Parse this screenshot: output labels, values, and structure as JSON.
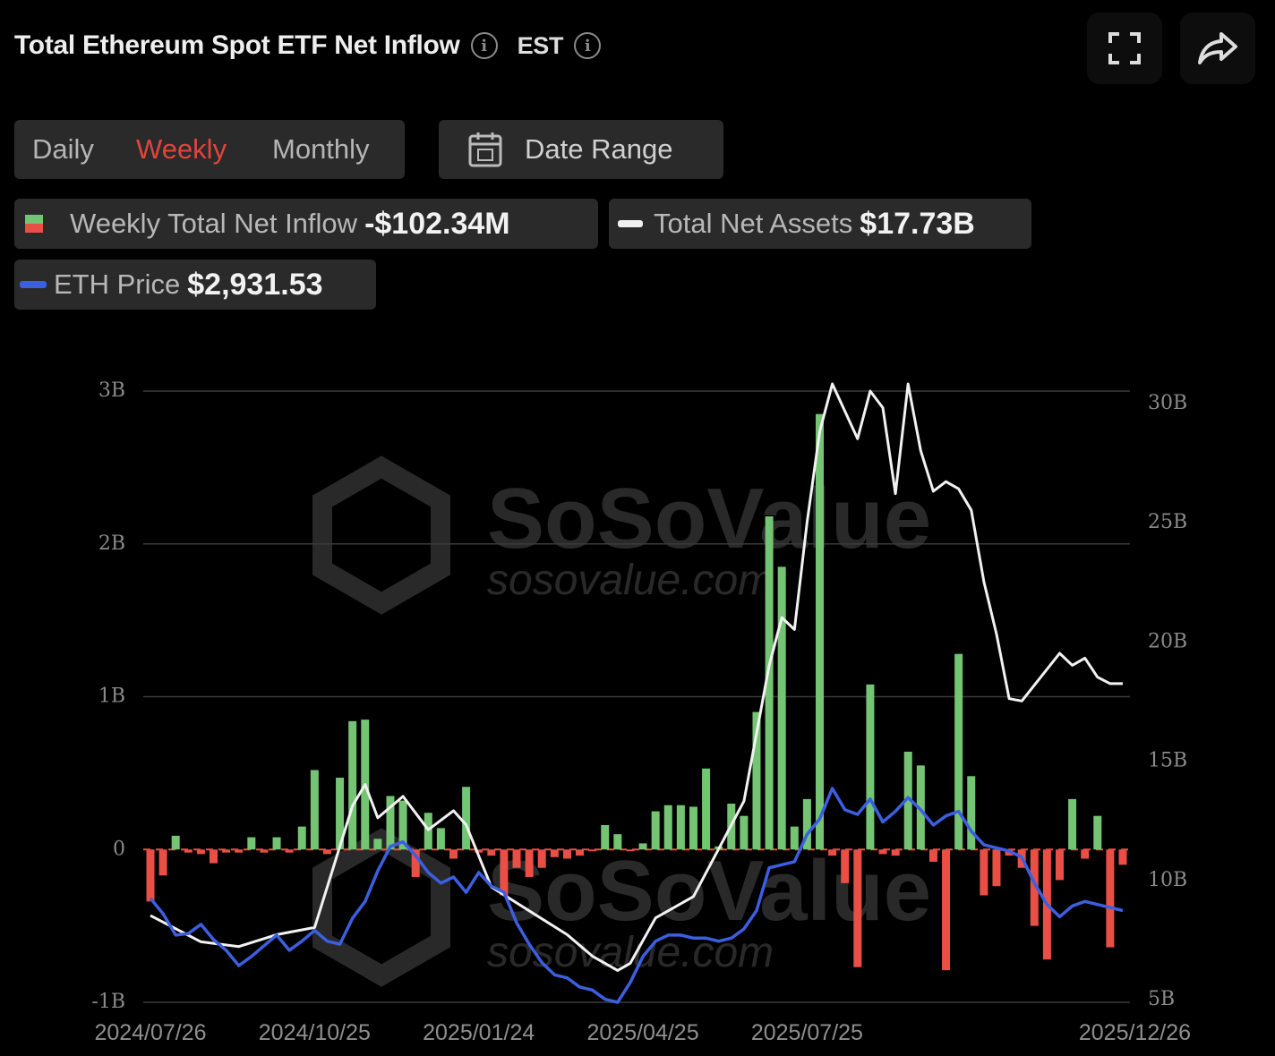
{
  "header": {
    "title": "Total Ethereum Spot ETF Net Inflow",
    "timezone": "EST",
    "info_icon": "info-icon",
    "fullscreen_icon": "fullscreen-icon",
    "share_icon": "share-icon"
  },
  "period_tabs": [
    {
      "label": "Daily",
      "active": false
    },
    {
      "label": "Weekly",
      "active": true
    },
    {
      "label": "Monthly",
      "active": false
    }
  ],
  "date_range": {
    "label": "Date Range",
    "icon": "calendar-icon"
  },
  "legend": {
    "inflow": {
      "label": "Weekly Total Net Inflow",
      "value": "-$102.34M"
    },
    "assets": {
      "label": "Total Net Assets",
      "value": "$17.73B"
    },
    "price": {
      "label": "ETH Price",
      "value": "$2,931.53"
    }
  },
  "watermark": {
    "brand": "SoSoValue",
    "url": "sosovalue.com"
  },
  "colors": {
    "positive": "#74c473",
    "negative": "#ea4f46",
    "assets_line": "#f2f2f2",
    "price_line": "#3b5fe0",
    "active_tab": "#e0453c"
  },
  "chart_data": {
    "type": "bar",
    "left_axis": {
      "ticks": [
        "3B",
        "2B",
        "1B",
        "0",
        "-1B"
      ],
      "range": [
        -1,
        3
      ],
      "unit": "B"
    },
    "right_axis": {
      "ticks": [
        "30B",
        "25B",
        "20B",
        "15B",
        "10B",
        "5B"
      ],
      "range": [
        5,
        30
      ],
      "unit": "B"
    },
    "x_ticks": [
      "2024/07/26",
      "2024/10/25",
      "2025/01/24",
      "2025/04/25",
      "2025/07/25",
      "2025/12/26"
    ],
    "series": [
      {
        "name": "Weekly Total Net Inflow",
        "kind": "bar",
        "axis": "left",
        "values": [
          -0.34,
          -0.17,
          0.09,
          -0.02,
          -0.03,
          -0.09,
          -0.02,
          -0.02,
          0.08,
          -0.02,
          0.08,
          -0.02,
          0.15,
          0.52,
          -0.03,
          0.47,
          0.84,
          0.85,
          0.07,
          0.35,
          0.32,
          -0.18,
          0.24,
          0.14,
          -0.06,
          0.41,
          -0.02,
          -0.04,
          -0.3,
          -0.12,
          -0.18,
          -0.12,
          -0.05,
          -0.06,
          -0.04,
          -0.01,
          0.16,
          0.1,
          -0.01,
          0.04,
          0.25,
          0.29,
          0.29,
          0.28,
          0.53,
          0.02,
          0.3,
          0.22,
          0.9,
          2.18,
          1.85,
          0.15,
          0.33,
          2.85,
          -0.04,
          -0.22,
          -0.77,
          1.08,
          -0.03,
          -0.04,
          0.64,
          0.55,
          -0.08,
          -0.79,
          1.28,
          0.48,
          -0.3,
          -0.24,
          -0.04,
          -0.12,
          -0.5,
          -0.72,
          -0.2,
          0.33,
          -0.06,
          0.22,
          -0.64,
          -0.1
        ]
      },
      {
        "name": "Total Net Assets",
        "kind": "line",
        "axis": "right",
        "x_index": [
          0,
          4,
          7,
          10,
          13,
          16,
          17,
          18,
          20,
          22,
          24,
          25,
          27,
          30,
          33,
          35,
          37,
          38,
          40,
          43,
          47,
          49,
          50,
          51,
          52,
          53,
          54,
          56,
          57,
          58,
          59,
          60,
          61,
          62,
          63,
          64,
          65,
          66,
          67,
          68,
          69,
          72,
          73,
          74,
          75,
          76,
          77
        ],
        "values": [
          8.0,
          6.9,
          6.7,
          7.2,
          7.5,
          12.6,
          13.5,
          12.1,
          13.0,
          11.6,
          12.4,
          11.8,
          9.2,
          8.2,
          7.2,
          6.3,
          5.7,
          6.0,
          7.9,
          8.8,
          12.8,
          18.5,
          20.5,
          20.0,
          24.5,
          28.3,
          30.3,
          28.0,
          30.0,
          29.3,
          25.7,
          30.3,
          27.5,
          25.8,
          26.2,
          25.9,
          25.0,
          22.0,
          19.8,
          17.1,
          17.0,
          19.0,
          18.5,
          18.8,
          18.0,
          17.73,
          17.73
        ]
      },
      {
        "name": "ETH Price",
        "kind": "line",
        "axis": "left",
        "values": [
          -0.32,
          -0.42,
          -0.56,
          -0.55,
          -0.49,
          -0.59,
          -0.66,
          -0.76,
          -0.7,
          -0.63,
          -0.56,
          -0.66,
          -0.6,
          -0.53,
          -0.6,
          -0.62,
          -0.45,
          -0.34,
          -0.14,
          0.02,
          0.05,
          -0.04,
          -0.15,
          -0.22,
          -0.18,
          -0.28,
          -0.15,
          -0.24,
          -0.28,
          -0.48,
          -0.62,
          -0.74,
          -0.82,
          -0.84,
          -0.9,
          -0.92,
          -0.98,
          -1.0,
          -0.87,
          -0.7,
          -0.6,
          -0.56,
          -0.56,
          -0.58,
          -0.58,
          -0.6,
          -0.58,
          -0.52,
          -0.4,
          -0.12,
          -0.1,
          -0.08,
          0.1,
          0.2,
          0.4,
          0.26,
          0.23,
          0.33,
          0.18,
          0.25,
          0.34,
          0.26,
          0.16,
          0.22,
          0.25,
          0.12,
          0.03,
          0.01,
          -0.01,
          -0.05,
          -0.22,
          -0.36,
          -0.44,
          -0.37,
          -0.34,
          -0.36,
          -0.38,
          -0.4
        ]
      }
    ]
  }
}
